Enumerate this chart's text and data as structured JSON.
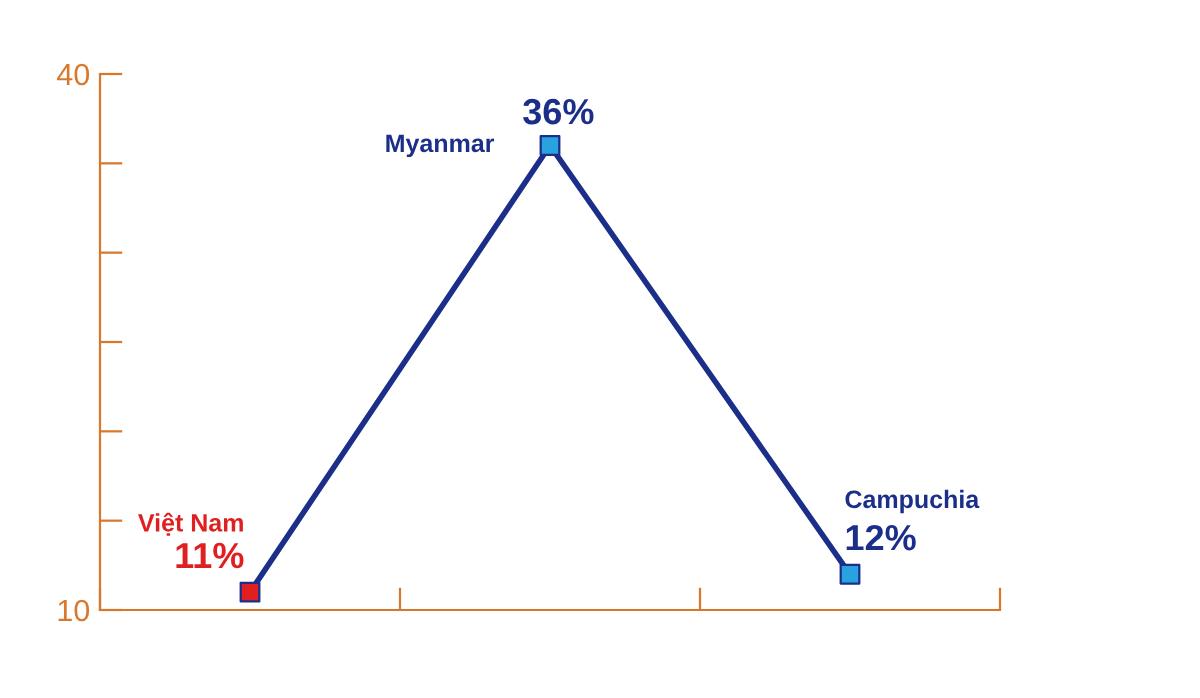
{
  "chart_data": {
    "type": "line",
    "categories": [
      null,
      null,
      null
    ],
    "series": [
      {
        "color": "#1b2f8a",
        "colors": [
          "#e02020",
          "#29a3e0",
          "#29a3e0"
        ],
        "values": [
          11,
          36,
          12
        ],
        "value_labels": [
          "11%",
          "36%",
          "12%"
        ]
      }
    ],
    "annotations": [
      "Việt Nam",
      "Myanmar",
      "Campuchia"
    ],
    "ylim": [
      10,
      40
    ],
    "yticks": [
      10,
      {
        "value": 15,
        "label": null
      },
      {
        "value": 20,
        "label": null
      },
      {
        "value": 25,
        "label": null
      },
      {
        "value": 30,
        "label": null
      },
      {
        "value": 35,
        "label": null
      },
      40
    ],
    "marker": "square",
    "line_style": "solid",
    "grid": false,
    "legend": false
  }
}
